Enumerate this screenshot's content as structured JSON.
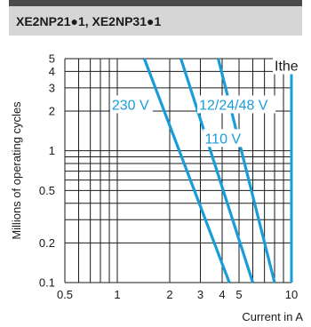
{
  "header": {
    "title": "XE2NP21●1, XE2NP31●1"
  },
  "colors": {
    "curve": "#1a9cd8",
    "grid": "#1a1a1a",
    "header_bg": "#d6d6d6",
    "top_bar": "#4a4a4a"
  },
  "chart_data": {
    "type": "line",
    "title": "",
    "xlabel": "Current in A",
    "ylabel": "Millions of operating cycles",
    "x_scale": "log",
    "y_scale": "log",
    "xlim": [
      0.5,
      10
    ],
    "ylim": [
      0.1,
      5
    ],
    "x_ticks": [
      0.5,
      1,
      2,
      3,
      4,
      5,
      10
    ],
    "x_tick_labels": [
      "0.5",
      "1",
      "2",
      "3",
      "4",
      "5",
      "10"
    ],
    "y_ticks": [
      0.1,
      0.2,
      0.5,
      1,
      2,
      3,
      4,
      5
    ],
    "y_tick_labels": [
      "0.1",
      "0.2",
      "0.5",
      "1",
      "2",
      "3",
      "4",
      "5"
    ],
    "ithe_label": "Ithe",
    "ithe_x": 10,
    "series": [
      {
        "name": "230 V",
        "x": [
          1.43,
          4.4
        ],
        "y": [
          5,
          0.1
        ]
      },
      {
        "name": "110 V",
        "x": [
          2.32,
          6.0
        ],
        "y": [
          5,
          0.1
        ]
      },
      {
        "name": "12/24/48 V",
        "x": [
          3.8,
          8.0
        ],
        "y": [
          5,
          0.1
        ]
      }
    ]
  }
}
